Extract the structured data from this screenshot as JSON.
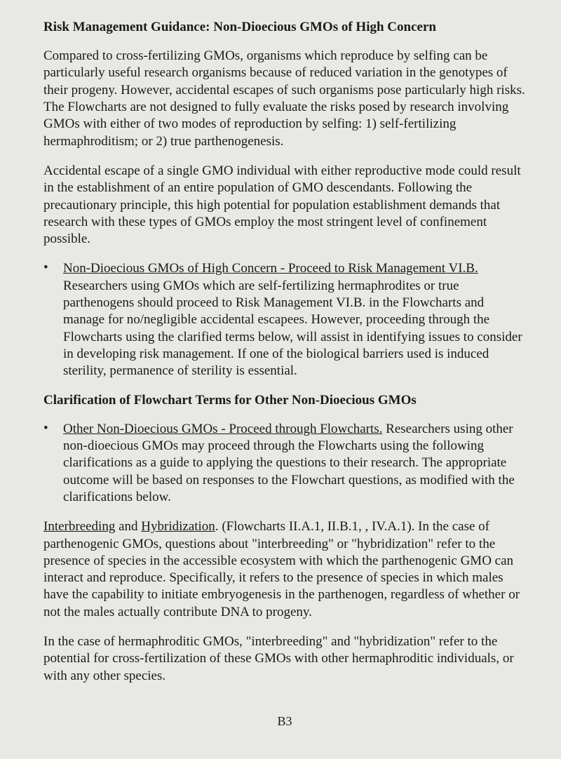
{
  "title": "Risk Management Guidance: Non-Dioecious GMOs of High Concern",
  "para1": "Compared to cross-fertilizing GMOs, organisms which reproduce by selfing can be particularly useful research organisms because of reduced variation in the genotypes of their progeny. However, accidental escapes of such organisms pose particularly high risks. The Flowcharts are not designed to fully evaluate the risks posed by research involving GMOs with either of two modes of reproduction by selfing: 1) self-fertilizing hermaphroditism; or 2) true parthenogenesis.",
  "para2": "Accidental escape of a single GMO individual with either reproductive mode could result in the establishment of an entire population of GMO descendants. Following the precautionary principle, this high potential for population establishment demands that research with these types of GMOs employ the most stringent level of confinement possible.",
  "bullet1_heading": "Non-Dioecious GMOs of High Concern - Proceed to Risk Management VI.B.",
  "bullet1_body": "Researchers using GMOs which are self-fertilizing hermaphrodites or true parthenogens should proceed to Risk Management VI.B. in the Flowcharts and manage for no/negligible accidental escapees. However, proceeding through the Flowcharts using the clarified terms below, will assist in identifying issues to consider in developing risk management. If one of the biological barriers used is induced sterility, permanence of sterility is essential.",
  "section_heading": "Clarification of Flowchart Terms for Other Non-Dioecious GMOs",
  "bullet2_heading": "Other Non-Dioecious GMOs  - Proceed through Flowcharts.",
  "bullet2_body": "Researchers using other non-dioecious GMOs may proceed through the Flowcharts using the following clarifications as a guide to applying the questions to their research. The appropriate outcome will be based on responses to the Flowchart questions, as modified with the clarifications below.",
  "para3_u1": "Interbreeding",
  "para3_mid1": " and ",
  "para3_u2": "Hybridization",
  "para3_rest": ". (Flowcharts II.A.1, II.B.1, , IV.A.1). In the case of parthenogenic GMOs, questions about \"interbreeding\" or \"hybridization\" refer to the presence of species in the accessible ecosystem with which the parthenogenic GMO can interact and reproduce. Specifically, it refers to the presence of species in which males have the capability to initiate embryogenesis in the parthenogen, regardless of whether or not the males actually contribute DNA to progeny.",
  "para4": "In the case of hermaphroditic GMOs, \"interbreeding\" and \"hybridization\" refer to the potential for cross-fertilization of these GMOs with other hermaphroditic individuals, or with any other species.",
  "page_number": "B3",
  "bullet_marker": "•"
}
